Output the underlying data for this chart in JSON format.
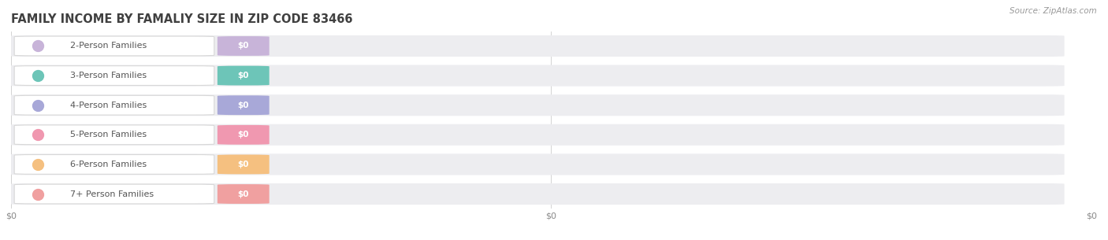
{
  "title": "FAMILY INCOME BY FAMALIY SIZE IN ZIP CODE 83466",
  "source": "Source: ZipAtlas.com",
  "categories": [
    "2-Person Families",
    "3-Person Families",
    "4-Person Families",
    "5-Person Families",
    "6-Person Families",
    "7+ Person Families"
  ],
  "values": [
    0,
    0,
    0,
    0,
    0,
    0
  ],
  "bar_colors": [
    "#c8b4d9",
    "#6dc5b8",
    "#a8a8d8",
    "#f098b0",
    "#f5c080",
    "#f0a0a0"
  ],
  "bg_color": "#ffffff",
  "row_bg_color": "#ededf0",
  "title_color": "#404040",
  "label_color": "#555555",
  "source_color": "#999999",
  "xtick_color": "#888888",
  "title_fontsize": 10.5,
  "label_fontsize": 8.0,
  "value_fontsize": 7.5,
  "source_fontsize": 7.5
}
